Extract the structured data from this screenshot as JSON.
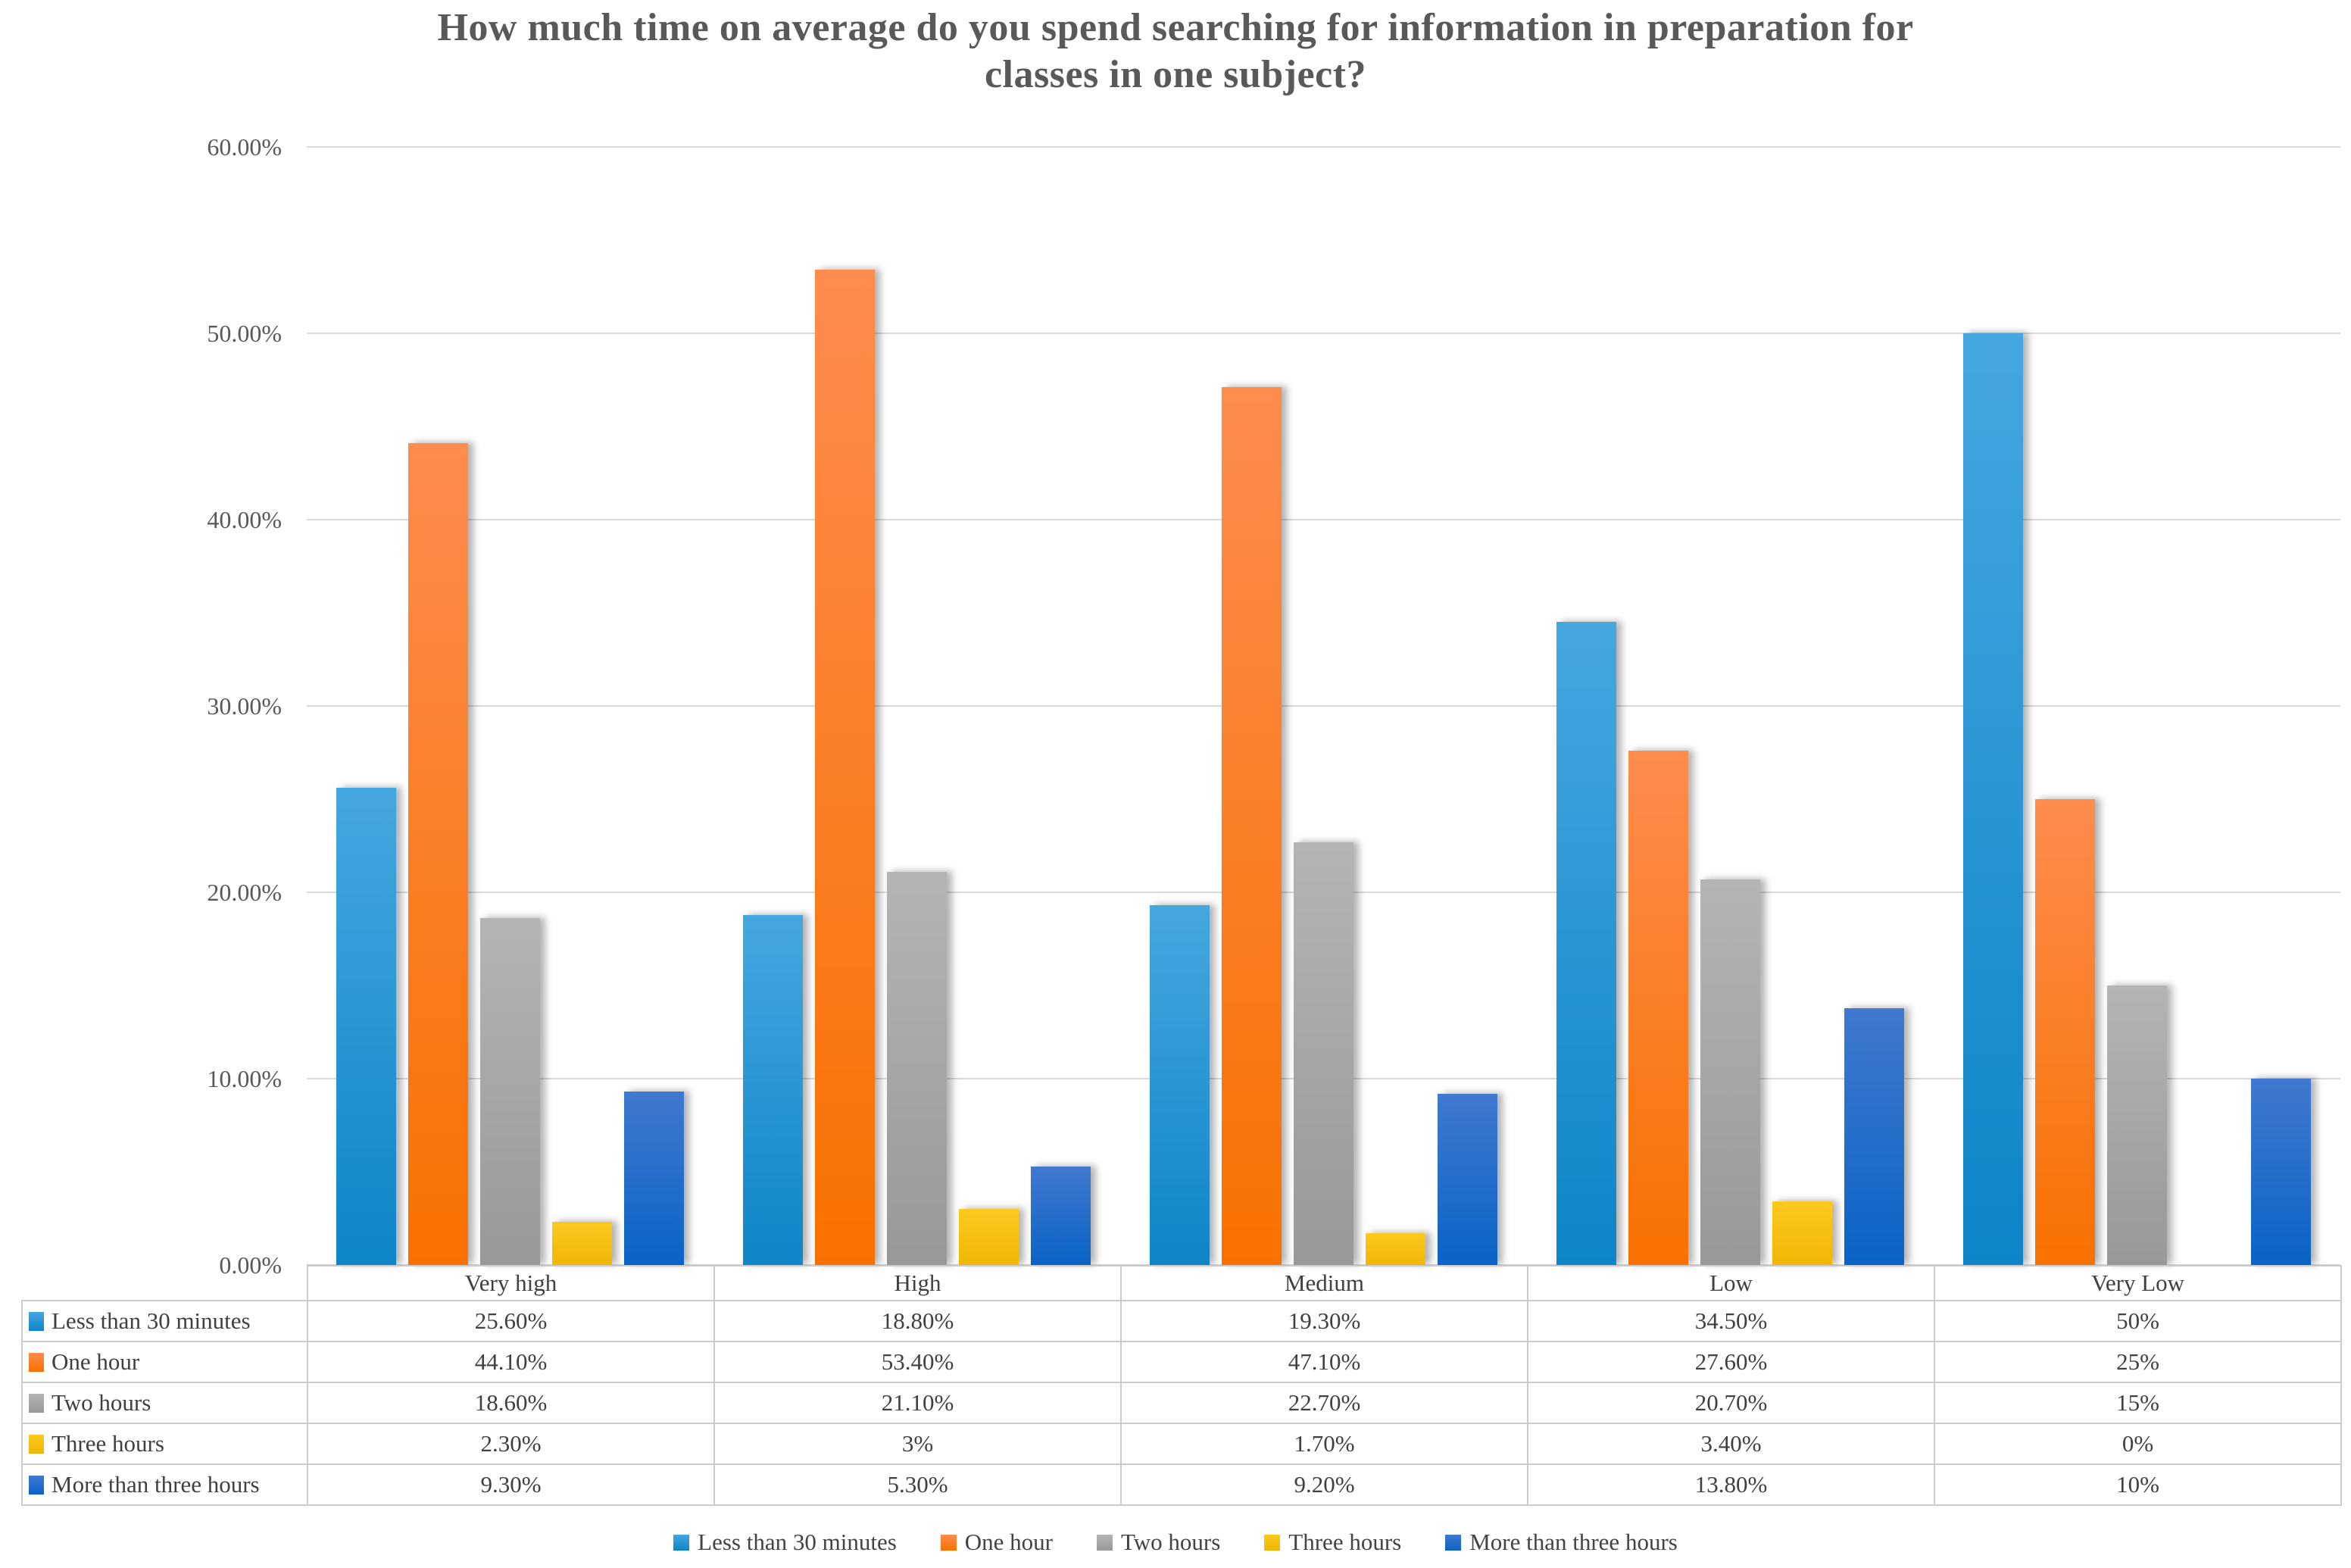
{
  "chart_data": {
    "type": "bar",
    "title": "How much time on average do you spend searching for information in preparation for\nclasses in one subject?",
    "categories": [
      "Very high",
      "High",
      "Medium",
      "Low",
      "Very Low"
    ],
    "series": [
      {
        "name": "Less than 30 minutes",
        "values": [
          25.6,
          18.8,
          19.3,
          34.5,
          50
        ],
        "labels": [
          "25.60%",
          "18.80%",
          "19.30%",
          "34.50%",
          "50%"
        ],
        "color": "#2496D5",
        "color_top": "#45A7DF",
        "color_bottom": "#0E85C8"
      },
      {
        "name": "One hour",
        "values": [
          44.1,
          53.4,
          47.1,
          27.6,
          25
        ],
        "labels": [
          "44.10%",
          "53.40%",
          "47.10%",
          "27.60%",
          "25%"
        ],
        "color": "#FB7A1E",
        "color_top": "#FD8C4E",
        "color_bottom": "#F87100"
      },
      {
        "name": "Two hours",
        "values": [
          18.6,
          21.1,
          22.7,
          20.7,
          15
        ],
        "labels": [
          "18.60%",
          "21.10%",
          "22.70%",
          "20.70%",
          "15%"
        ],
        "color": "#A6A6A6",
        "color_top": "#B5B4B4",
        "color_bottom": "#999898"
      },
      {
        "name": "Three hours",
        "values": [
          2.3,
          3,
          1.7,
          3.4,
          0
        ],
        "labels": [
          "2.30%",
          "3%",
          "1.70%",
          "3.40%",
          "0%"
        ],
        "color": "#FFC000",
        "color_top": "#FDC91F",
        "color_bottom": "#EFB606"
      },
      {
        "name": "More than three hours",
        "values": [
          9.3,
          5.3,
          9.2,
          13.8,
          10
        ],
        "labels": [
          "9.30%",
          "5.30%",
          "9.20%",
          "13.80%",
          "10%"
        ],
        "color": "#1F64C9",
        "color_top": "#4079D0",
        "color_bottom": "#0A63C5"
      }
    ],
    "y_axis": {
      "min": 0,
      "max": 60,
      "ticks": [
        "0.00%",
        "10.00%",
        "20.00%",
        "30.00%",
        "40.00%",
        "50.00%",
        "60.00%"
      ]
    },
    "grid": true,
    "legend_position": "bottom",
    "show_data_table": true
  },
  "palette": {
    "title_text": "#595959",
    "axis_text": "#595959",
    "table_text": "#404040",
    "gridline": "#D9D9D9",
    "table_border": "#CBCBCB",
    "background": "#FFFFFF"
  }
}
